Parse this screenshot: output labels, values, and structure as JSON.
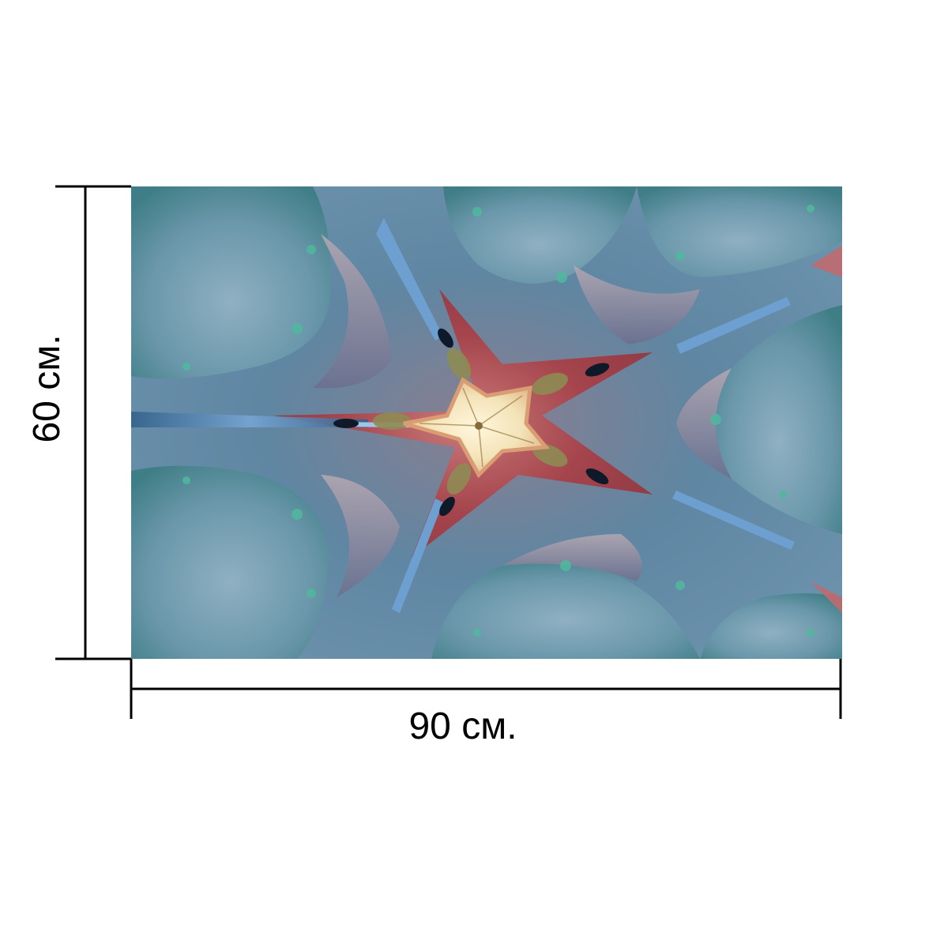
{
  "product": {
    "width_label": "90 см.",
    "height_label": "60 см."
  },
  "artwork": {
    "subject": "kaleidoscope-flower",
    "colors": {
      "petal_blue": "#6f95b0",
      "petal_teal": "#4e8c8c",
      "deep_blue": "#2f5f88",
      "star_red": "#a5444c",
      "star_red_light": "#c06a6e",
      "center_cream": "#f3e3b8",
      "center_olive": "#8e8b54",
      "mauve": "#9d8fa0"
    }
  }
}
